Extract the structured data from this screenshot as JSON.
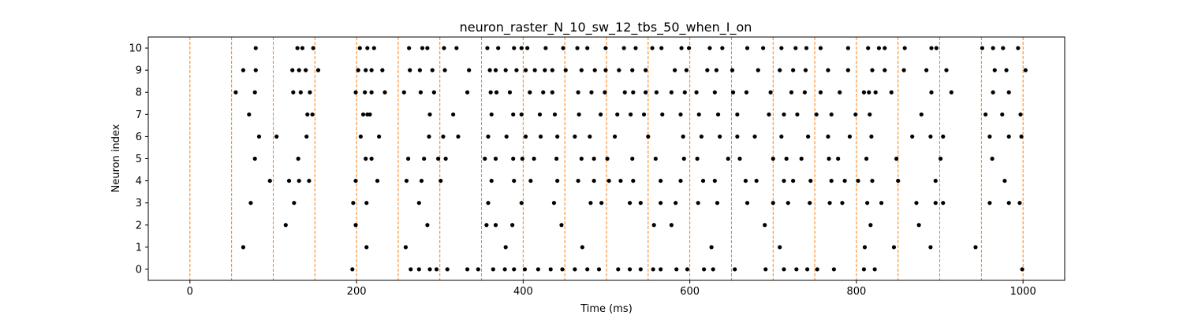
{
  "chart_data": {
    "type": "scatter",
    "title": "neuron_raster_N_10_sw_12_tbs_50_when_I_on",
    "xlabel": "Time (ms)",
    "ylabel": "Neuron index",
    "xlim": [
      -50,
      1050
    ],
    "ylim": [
      -0.5,
      10.5
    ],
    "xticks": [
      0,
      200,
      400,
      600,
      800,
      1000
    ],
    "yticks": [
      0,
      1,
      2,
      3,
      4,
      5,
      6,
      7,
      8,
      9,
      10
    ],
    "grid": false,
    "marker_color": "#000000",
    "vline_color": "#ff7f0e",
    "vlines": [
      0,
      50,
      100,
      150,
      200,
      250,
      300,
      350,
      400,
      450,
      500,
      550,
      600,
      650,
      700,
      750,
      800,
      850,
      900,
      950,
      1000
    ],
    "series": [
      {
        "neuron": 0,
        "times": [
          195,
          265,
          275,
          288,
          296,
          309,
          333,
          346,
          364,
          378,
          389,
          402,
          418,
          433,
          447,
          462,
          477,
          491,
          514,
          528,
          541,
          556,
          565,
          584,
          597,
          617,
          628,
          654,
          691,
          713,
          728,
          741,
          753,
          773,
          809,
          822,
          999
        ]
      },
      {
        "neuron": 1,
        "times": [
          64,
          212,
          259,
          379,
          471,
          626,
          708,
          810,
          845,
          889,
          943
        ]
      },
      {
        "neuron": 2,
        "times": [
          115,
          199,
          285,
          356,
          367,
          387,
          446,
          557,
          578,
          690,
          817,
          875
        ]
      },
      {
        "neuron": 3,
        "times": [
          73,
          125,
          196,
          212,
          275,
          358,
          398,
          437,
          481,
          494,
          528,
          541,
          565,
          583,
          610,
          633,
          669,
          700,
          718,
          744,
          768,
          783,
          813,
          830,
          872,
          895,
          904,
          960,
          983,
          996
        ]
      },
      {
        "neuron": 4,
        "times": [
          96,
          119,
          131,
          143,
          199,
          225,
          260,
          278,
          301,
          362,
          389,
          409,
          441,
          466,
          485,
          503,
          517,
          532,
          565,
          589,
          616,
          630,
          667,
          680,
          713,
          724,
          745,
          770,
          786,
          802,
          819,
          850,
          895,
          978
        ]
      },
      {
        "neuron": 5,
        "times": [
          78,
          130,
          211,
          218,
          262,
          281,
          298,
          307,
          354,
          367,
          388,
          399,
          413,
          440,
          470,
          485,
          501,
          531,
          559,
          593,
          609,
          646,
          660,
          700,
          716,
          734,
          767,
          778,
          812,
          848,
          901,
          963
        ]
      },
      {
        "neuron": 6,
        "times": [
          83,
          104,
          140,
          205,
          227,
          287,
          304,
          322,
          358,
          380,
          403,
          421,
          441,
          462,
          480,
          510,
          550,
          592,
          614,
          636,
          657,
          678,
          710,
          742,
          766,
          792,
          818,
          867,
          889,
          904,
          960,
          983,
          998
        ]
      },
      {
        "neuron": 7,
        "times": [
          71,
          141,
          147,
          208,
          213,
          216,
          288,
          316,
          362,
          388,
          398,
          420,
          438,
          467,
          493,
          513,
          529,
          545,
          567,
          589,
          611,
          634,
          657,
          695,
          713,
          729,
          752,
          770,
          799,
          816,
          878,
          955,
          975,
          997
        ]
      },
      {
        "neuron": 8,
        "times": [
          55,
          78,
          124,
          133,
          144,
          199,
          210,
          218,
          234,
          257,
          277,
          293,
          333,
          361,
          368,
          384,
          408,
          424,
          435,
          466,
          482,
          498,
          522,
          532,
          547,
          560,
          578,
          594,
          608,
          630,
          652,
          668,
          697,
          722,
          738,
          757,
          780,
          809,
          815,
          823,
          842,
          890,
          914,
          964,
          983
        ]
      },
      {
        "neuron": 9,
        "times": [
          64,
          79,
          123,
          131,
          139,
          154,
          202,
          211,
          218,
          231,
          264,
          276,
          291,
          306,
          335,
          360,
          367,
          379,
          392,
          403,
          414,
          426,
          435,
          451,
          470,
          486,
          499,
          515,
          531,
          547,
          582,
          596,
          621,
          632,
          651,
          682,
          708,
          724,
          739,
          766,
          790,
          819,
          834,
          857,
          884,
          908,
          966,
          980,
          1003
        ]
      },
      {
        "neuron": 10,
        "times": [
          79,
          129,
          135,
          148,
          204,
          213,
          221,
          263,
          279,
          285,
          305,
          320,
          357,
          370,
          389,
          398,
          405,
          427,
          448,
          465,
          477,
          499,
          521,
          535,
          555,
          566,
          590,
          599,
          624,
          639,
          669,
          688,
          710,
          727,
          740,
          757,
          790,
          814,
          827,
          834,
          858,
          890,
          896,
          951,
          964,
          976,
          994
        ]
      }
    ]
  }
}
